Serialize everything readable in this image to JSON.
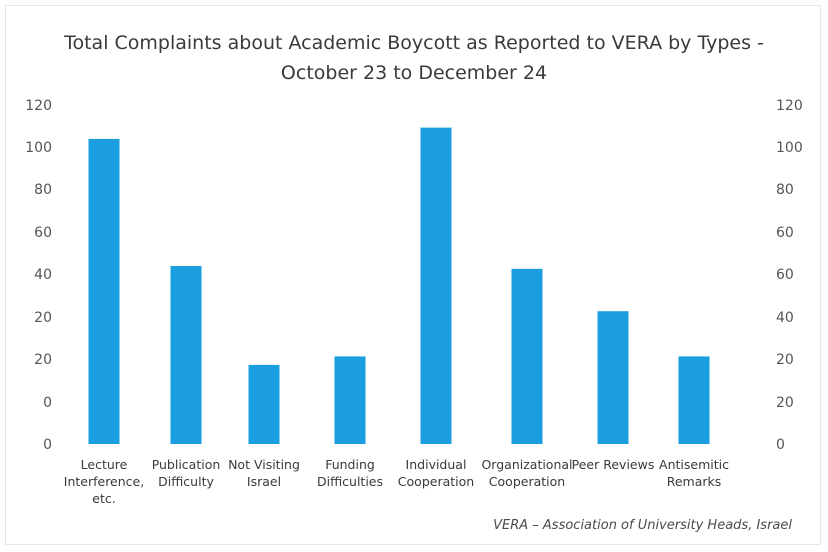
{
  "chart_data": {
    "type": "bar",
    "title": "Total Complaints about Academic Boycott as Reported to VERA by Types - October 23 to December 24",
    "categories": [
      [
        "Lecture",
        "Interference,",
        "etc."
      ],
      [
        "Publication",
        "Difficulty"
      ],
      [
        "Not Visiting",
        "Israel"
      ],
      [
        "Funding",
        "Difficulties"
      ],
      [
        "Individual",
        "Cooperation"
      ],
      [
        "Organizational",
        "Cooperation"
      ],
      [
        "Peer Reviews"
      ],
      [
        "Antisemitic",
        "Remarks"
      ]
    ],
    "values": [
      108,
      63,
      28,
      31,
      112,
      62,
      47,
      31
    ],
    "ylim": [
      0,
      120
    ],
    "left_tick_labels": [
      "0",
      "0",
      "20",
      "20",
      "40",
      "60",
      "80",
      "100",
      "120"
    ],
    "right_tick_labels": [
      "0",
      "20",
      "20",
      "40",
      "60",
      "60",
      "80",
      "100",
      "120"
    ],
    "bar_color": "#1a9ee0",
    "grid": false,
    "legend": "none",
    "source": "VERA – Association of University Heads, Israel"
  }
}
